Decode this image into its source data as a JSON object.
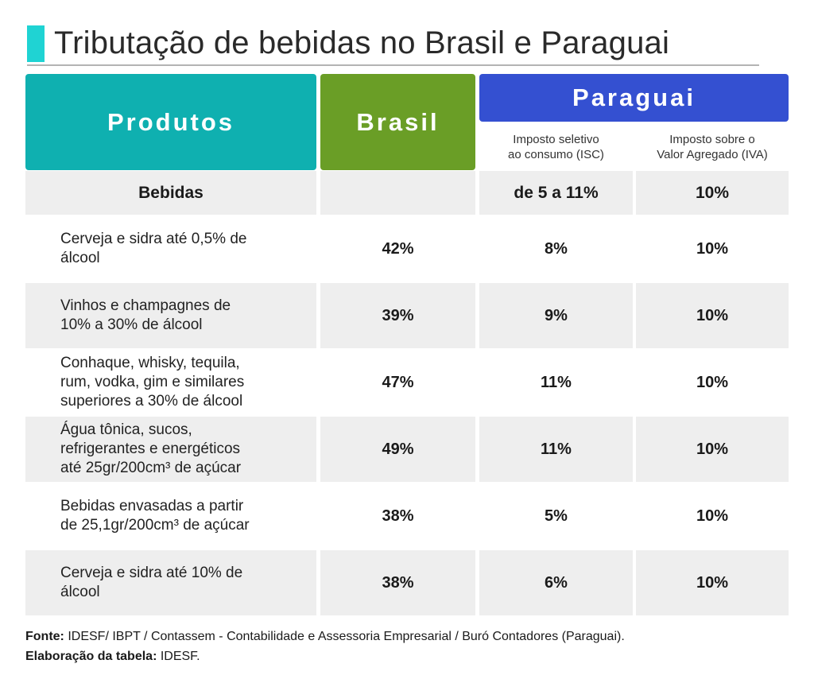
{
  "title": "Tributação de bebidas no Brasil e Paraguai",
  "colors": {
    "accent": "#1fd3d3",
    "produtos_header": "#0fb0b0",
    "brasil_header": "#6a9e26",
    "paraguai_header": "#3450d1",
    "row_shade": "#eeeeee"
  },
  "headers": {
    "produtos": "Produtos",
    "brasil": "Brasil",
    "paraguai": "Paraguai",
    "isc_line1": "Imposto seletivo",
    "isc_line2": "ao consumo (ISC)",
    "iva_line1": "Imposto sobre o",
    "iva_line2": "Valor Agregado (IVA)"
  },
  "section": {
    "label": "Bebidas",
    "brasil": "",
    "isc": "de 5 a 11%",
    "iva": "10%"
  },
  "rows": [
    {
      "line1": "Cerveja e sidra até 0,5% de",
      "line2": "álcool",
      "line3": "",
      "brasil": "42%",
      "isc": "8%",
      "iva": "10%"
    },
    {
      "line1": "Vinhos e champagnes de",
      "line2": "10% a 30% de álcool",
      "line3": "",
      "brasil": "39%",
      "isc": "9%",
      "iva": "10%"
    },
    {
      "line1": "Conhaque, whisky, tequila,",
      "line2": "rum, vodka, gim e similares",
      "line3": "superiores a 30% de álcool",
      "brasil": "47%",
      "isc": "11%",
      "iva": "10%"
    },
    {
      "line1": "Água tônica, sucos,",
      "line2": "refrigerantes e energéticos",
      "line3": "até 25gr/200cm³ de açúcar",
      "brasil": "49%",
      "isc": "11%",
      "iva": "10%"
    },
    {
      "line1": "Bebidas envasadas a partir",
      "line2": "de 25,1gr/200cm³ de açúcar",
      "line3": "",
      "brasil": "38%",
      "isc": "5%",
      "iva": "10%"
    },
    {
      "line1": "Cerveja e sidra até 10% de",
      "line2": "álcool",
      "line3": "",
      "brasil": "38%",
      "isc": "6%",
      "iva": "10%"
    }
  ],
  "footer": {
    "fonte_label": "Fonte:",
    "fonte_text": " IDESF/ IBPT / Contassem - Contabilidade e Assessoria Empresarial / Buró Contadores (Paraguai).",
    "elab_label": "Elaboração da tabela:",
    "elab_text": " IDESF."
  }
}
